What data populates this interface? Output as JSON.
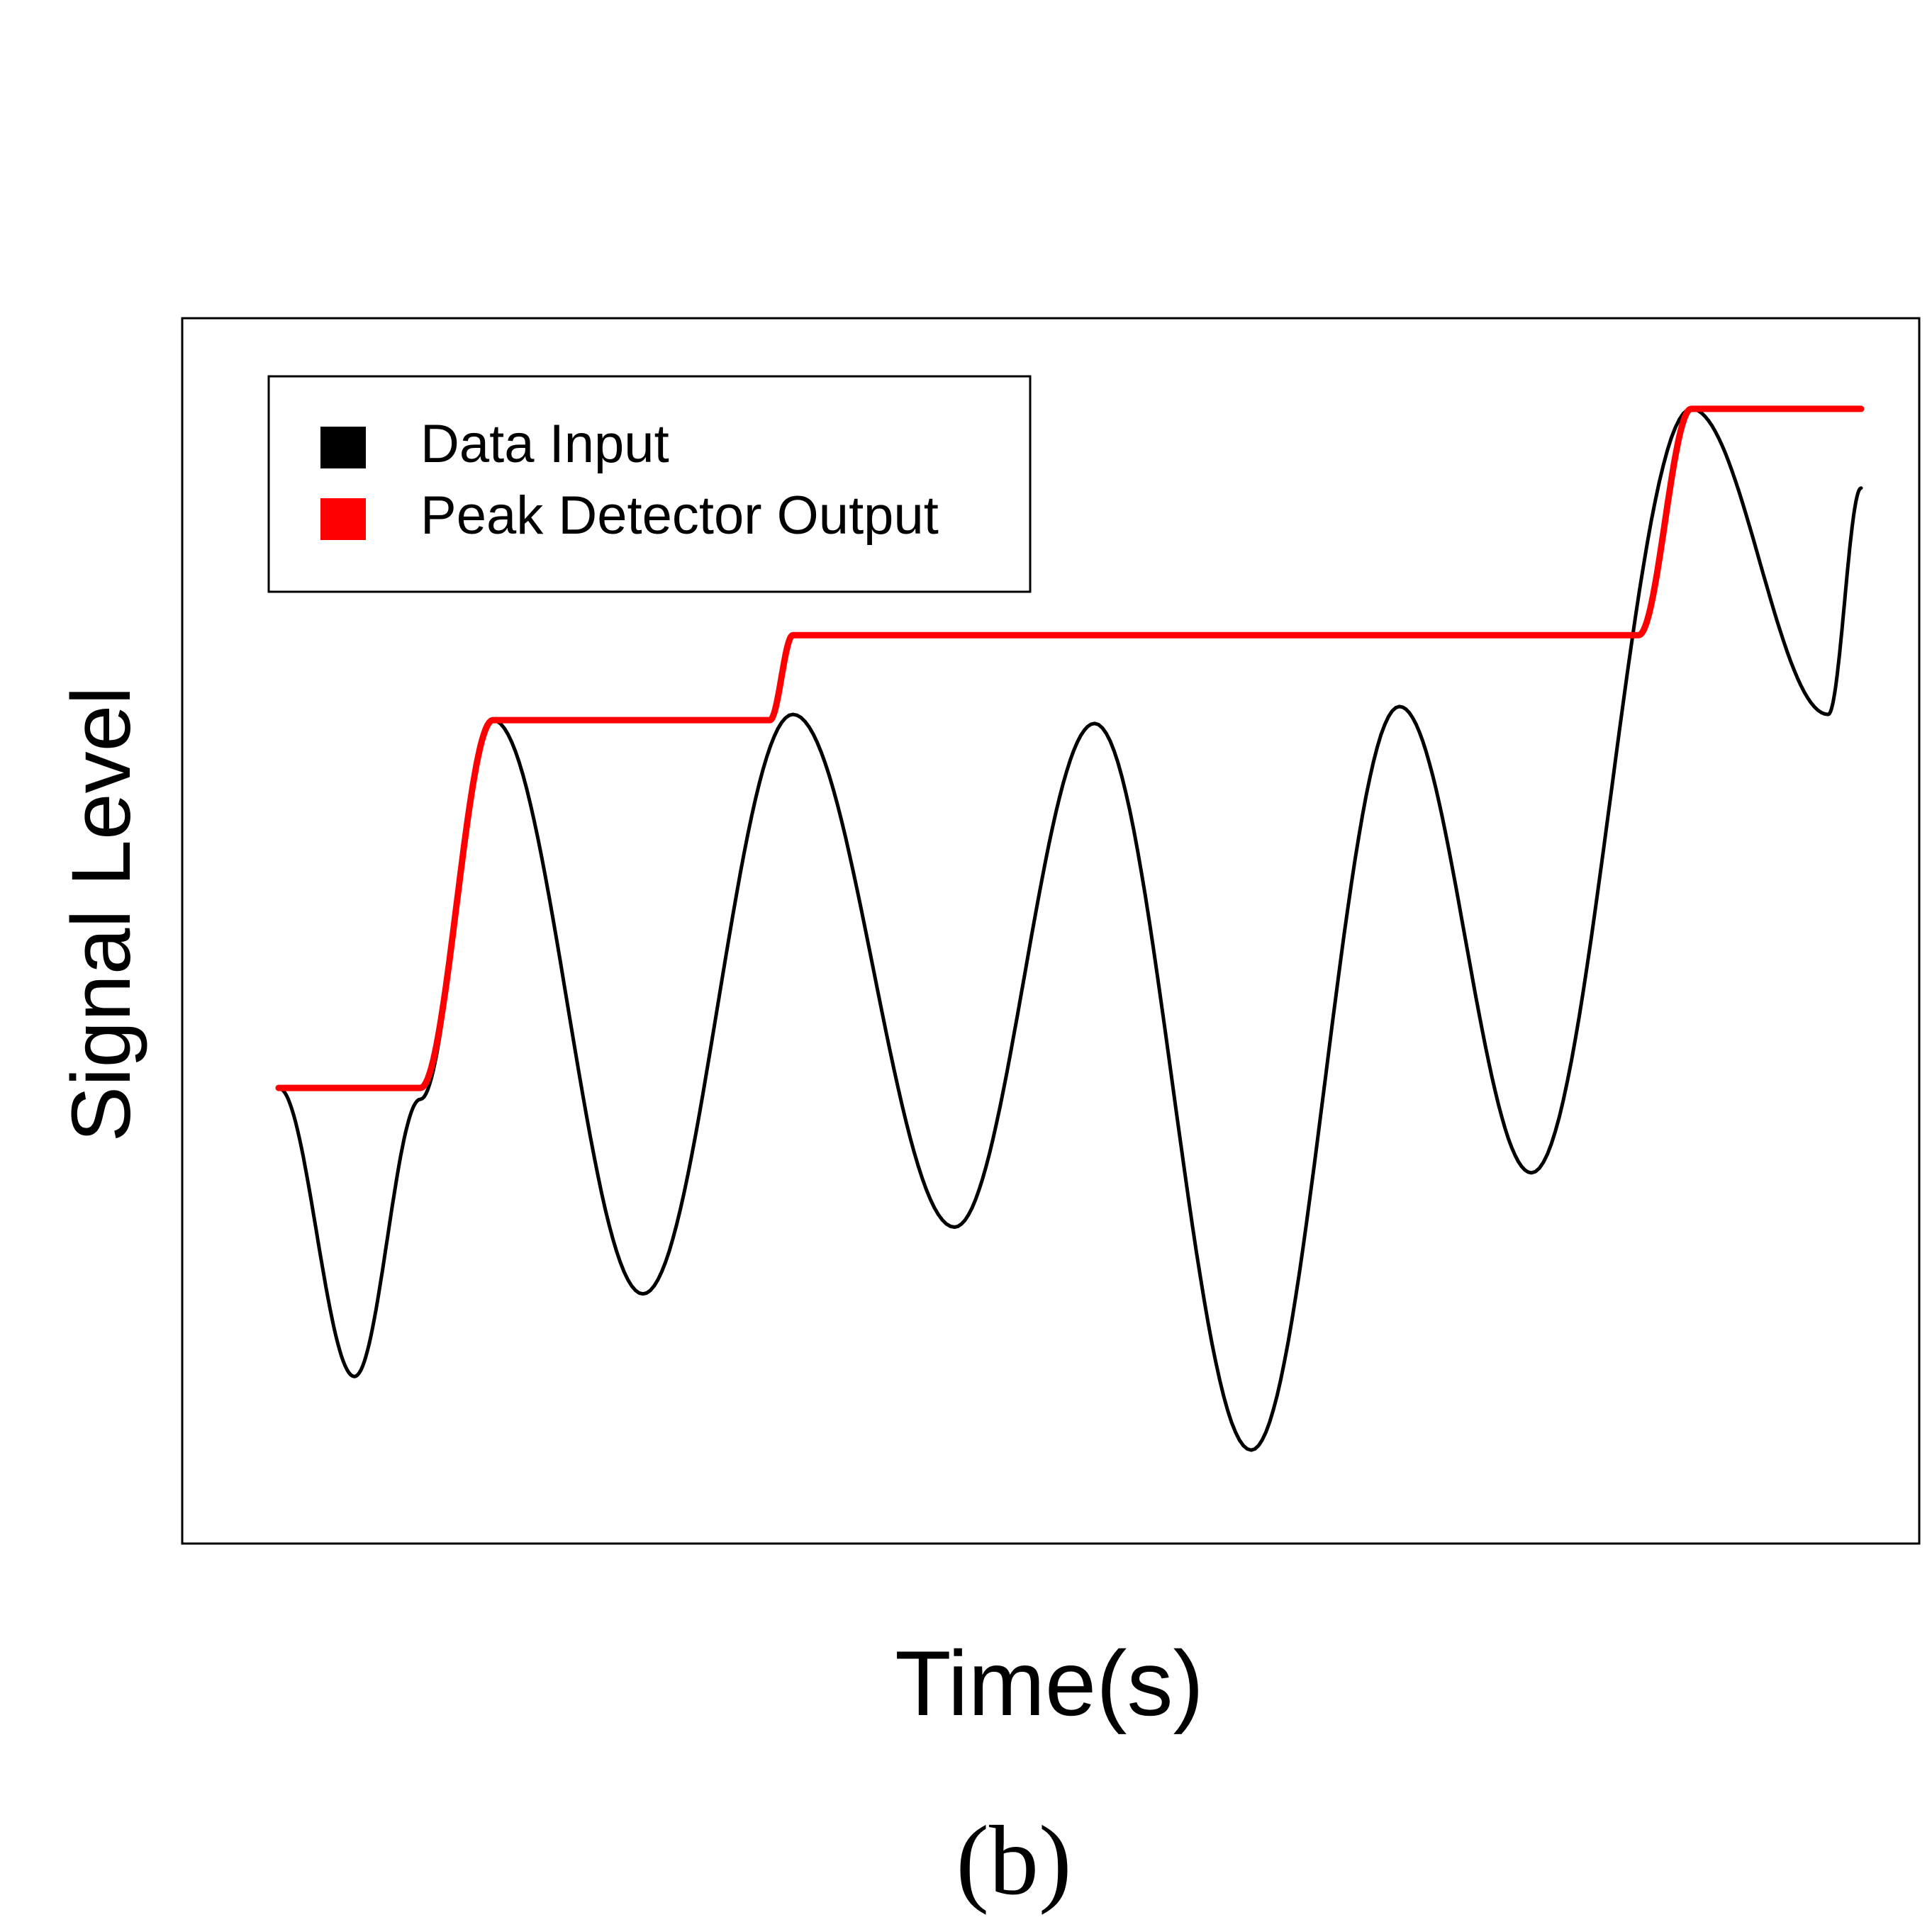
{
  "chart_data": {
    "type": "line",
    "xlabel": "Time(s)",
    "ylabel": "Signal Level",
    "caption": "(b)",
    "grid": false,
    "legend_placement": "top-left",
    "xlim": [
      0,
      100
    ],
    "ylim": [
      0,
      100
    ],
    "series": [
      {
        "name": "Data Input",
        "color": "#000000",
        "points": [
          [
            4.0,
            36.0
          ],
          [
            8.6,
            10.5
          ],
          [
            12.6,
            35.0
          ],
          [
            17.0,
            68.5
          ],
          [
            26.1,
            17.8
          ],
          [
            35.2,
            69.0
          ],
          [
            45.0,
            23.7
          ],
          [
            53.5,
            68.2
          ],
          [
            63.0,
            4.0
          ],
          [
            72.0,
            69.7
          ],
          [
            80.0,
            28.5
          ],
          [
            89.7,
            96.0
          ],
          [
            98.0,
            69.0
          ],
          [
            100.0,
            89.0
          ]
        ]
      },
      {
        "name": "Peak Detector Output",
        "color": "#ff0000",
        "points": [
          [
            4.0,
            36.0
          ],
          [
            12.6,
            36.0
          ],
          [
            17.0,
            68.5
          ],
          [
            33.8,
            68.5
          ],
          [
            35.2,
            76.0
          ],
          [
            86.5,
            76.0
          ],
          [
            89.7,
            96.0
          ],
          [
            100.0,
            96.0
          ]
        ]
      }
    ]
  }
}
